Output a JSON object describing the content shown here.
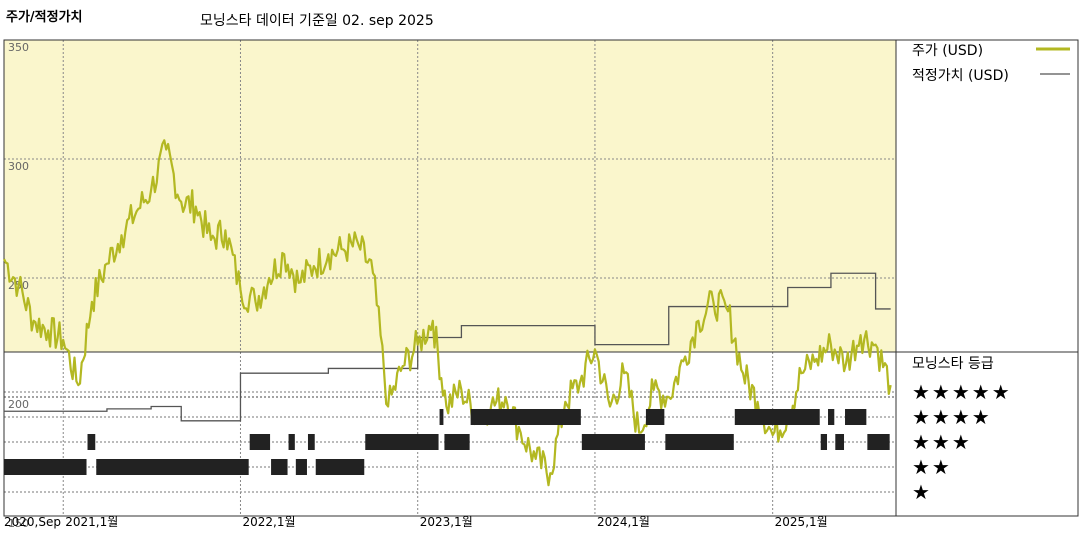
{
  "header": {
    "title": "주가/적정가치",
    "date_note": "모닝스타 데이터 기준일 02. sep 2025"
  },
  "legend": {
    "price_label": "주가 (USD)",
    "fair_label": "적정가치 (USD)"
  },
  "rating": {
    "title": "모닝스타 등급",
    "stars": [
      "★★★★★",
      "★★★★",
      "★★★",
      "★★",
      "★"
    ]
  },
  "colors": {
    "price": "#b3b822",
    "fair": "#555555",
    "upper_bg": "#faf6cc",
    "rating_bar": "#222222"
  },
  "chart_data": [
    {
      "type": "line",
      "ylim": [
        150,
        350
      ],
      "yticks": [
        150,
        200,
        250,
        300,
        350
      ],
      "grid": true,
      "legend_position": "right",
      "x_range": [
        "2020-09",
        "2025-09"
      ],
      "x_ticks": [
        "2020,Sep",
        "2021,1월",
        "2022,1월",
        "2023,1월",
        "2024,1월",
        "2025,1월"
      ],
      "series": [
        {
          "name": "주가 (USD)",
          "points": [
            [
              "2020-09-01",
              258
            ],
            [
              "2020-10-01",
              247
            ],
            [
              "2020-11-01",
              232
            ],
            [
              "2020-12-01",
              228
            ],
            [
              "2021-01-01",
              224
            ],
            [
              "2021-02-01",
              205
            ],
            [
              "2021-03-01",
              240
            ],
            [
              "2021-04-01",
              256
            ],
            [
              "2021-05-01",
              268
            ],
            [
              "2021-06-01",
              278
            ],
            [
              "2021-07-01",
              287
            ],
            [
              "2021-08-01",
              304
            ],
            [
              "2021-09-01",
              282
            ],
            [
              "2021-10-01",
              280
            ],
            [
              "2021-11-01",
              266
            ],
            [
              "2021-12-01",
              270
            ],
            [
              "2022-01-01",
              245
            ],
            [
              "2022-02-01",
              240
            ],
            [
              "2022-03-01",
              250
            ],
            [
              "2022-04-01",
              260
            ],
            [
              "2022-05-01",
              248
            ],
            [
              "2022-06-01",
              255
            ],
            [
              "2022-07-01",
              260
            ],
            [
              "2022-08-01",
              262
            ],
            [
              "2022-09-01",
              264
            ],
            [
              "2022-10-01",
              252
            ],
            [
              "2022-11-01",
              196
            ],
            [
              "2022-12-01",
              213
            ],
            [
              "2023-01-01",
              222
            ],
            [
              "2023-02-01",
              232
            ],
            [
              "2023-03-01",
              196
            ],
            [
              "2023-04-01",
              203
            ],
            [
              "2023-05-01",
              192
            ],
            [
              "2023-06-01",
              196
            ],
            [
              "2023-07-01",
              200
            ],
            [
              "2023-08-01",
              185
            ],
            [
              "2023-09-01",
              174
            ],
            [
              "2023-10-01",
              168
            ],
            [
              "2023-11-01",
              198
            ],
            [
              "2023-12-01",
              206
            ],
            [
              "2024-01-01",
              220
            ],
            [
              "2024-02-01",
              196
            ],
            [
              "2024-03-01",
              210
            ],
            [
              "2024-04-01",
              185
            ],
            [
              "2024-05-01",
              203
            ],
            [
              "2024-06-01",
              200
            ],
            [
              "2024-07-01",
              215
            ],
            [
              "2024-08-01",
              232
            ],
            [
              "2024-09-01",
              240
            ],
            [
              "2024-10-01",
              236
            ],
            [
              "2024-11-01",
              210
            ],
            [
              "2024-12-01",
              198
            ],
            [
              "2025-01-01",
              184
            ],
            [
              "2025-02-01",
              192
            ],
            [
              "2025-03-01",
              210
            ],
            [
              "2025-04-01",
              216
            ],
            [
              "2025-05-01",
              222
            ],
            [
              "2025-06-01",
              214
            ],
            [
              "2025-07-01",
              226
            ],
            [
              "2025-08-01",
              222
            ],
            [
              "2025-09-01",
              205
            ]
          ]
        },
        {
          "name": "적정가치 (USD)",
          "step": true,
          "points": [
            [
              "2020-09-01",
              194
            ],
            [
              "2021-04-01",
              195
            ],
            [
              "2021-07-01",
              196
            ],
            [
              "2021-09-01",
              190
            ],
            [
              "2022-01-01",
              210
            ],
            [
              "2022-07-01",
              212
            ],
            [
              "2023-01-01",
              225
            ],
            [
              "2023-04-01",
              230
            ],
            [
              "2024-01-01",
              222
            ],
            [
              "2024-06-01",
              238
            ],
            [
              "2025-02-01",
              246
            ],
            [
              "2025-05-01",
              252
            ],
            [
              "2025-08-01",
              237
            ],
            [
              "2025-09-01",
              237
            ]
          ]
        }
      ]
    },
    {
      "type": "rating-timeline",
      "levels": [
        5,
        4,
        3,
        2,
        1
      ],
      "segments": [
        {
          "stars": 2,
          "from": "2020-09-01",
          "to": "2021-02-20"
        },
        {
          "stars": 3,
          "from": "2021-02-20",
          "to": "2021-03-10"
        },
        {
          "stars": 2,
          "from": "2021-03-10",
          "to": "2022-01-20"
        },
        {
          "stars": 3,
          "from": "2022-01-20",
          "to": "2022-03-05"
        },
        {
          "stars": 2,
          "from": "2022-03-05",
          "to": "2022-04-10"
        },
        {
          "stars": 3,
          "from": "2022-04-10",
          "to": "2022-04-25"
        },
        {
          "stars": 2,
          "from": "2022-04-25",
          "to": "2022-05-20"
        },
        {
          "stars": 3,
          "from": "2022-05-20",
          "to": "2022-06-05"
        },
        {
          "stars": 2,
          "from": "2022-06-05",
          "to": "2022-09-15"
        },
        {
          "stars": 3,
          "from": "2022-09-15",
          "to": "2023-02-15"
        },
        {
          "stars": 4,
          "from": "2023-02-15",
          "to": "2023-02-25"
        },
        {
          "stars": 3,
          "from": "2023-02-25",
          "to": "2023-04-20"
        },
        {
          "stars": 4,
          "from": "2023-04-20",
          "to": "2023-12-05"
        },
        {
          "stars": 3,
          "from": "2023-12-05",
          "to": "2024-04-15"
        },
        {
          "stars": 4,
          "from": "2024-04-15",
          "to": "2024-05-25"
        },
        {
          "stars": 3,
          "from": "2024-05-25",
          "to": "2024-10-15"
        },
        {
          "stars": 4,
          "from": "2024-10-15",
          "to": "2025-04-10"
        },
        {
          "stars": 3,
          "from": "2025-04-10",
          "to": "2025-04-25"
        },
        {
          "stars": 4,
          "from": "2025-04-25",
          "to": "2025-05-10"
        },
        {
          "stars": 3,
          "from": "2025-05-10",
          "to": "2025-05-30"
        },
        {
          "stars": 4,
          "from": "2025-05-30",
          "to": "2025-07-15"
        },
        {
          "stars": 3,
          "from": "2025-07-15",
          "to": "2025-09-01"
        }
      ]
    }
  ]
}
